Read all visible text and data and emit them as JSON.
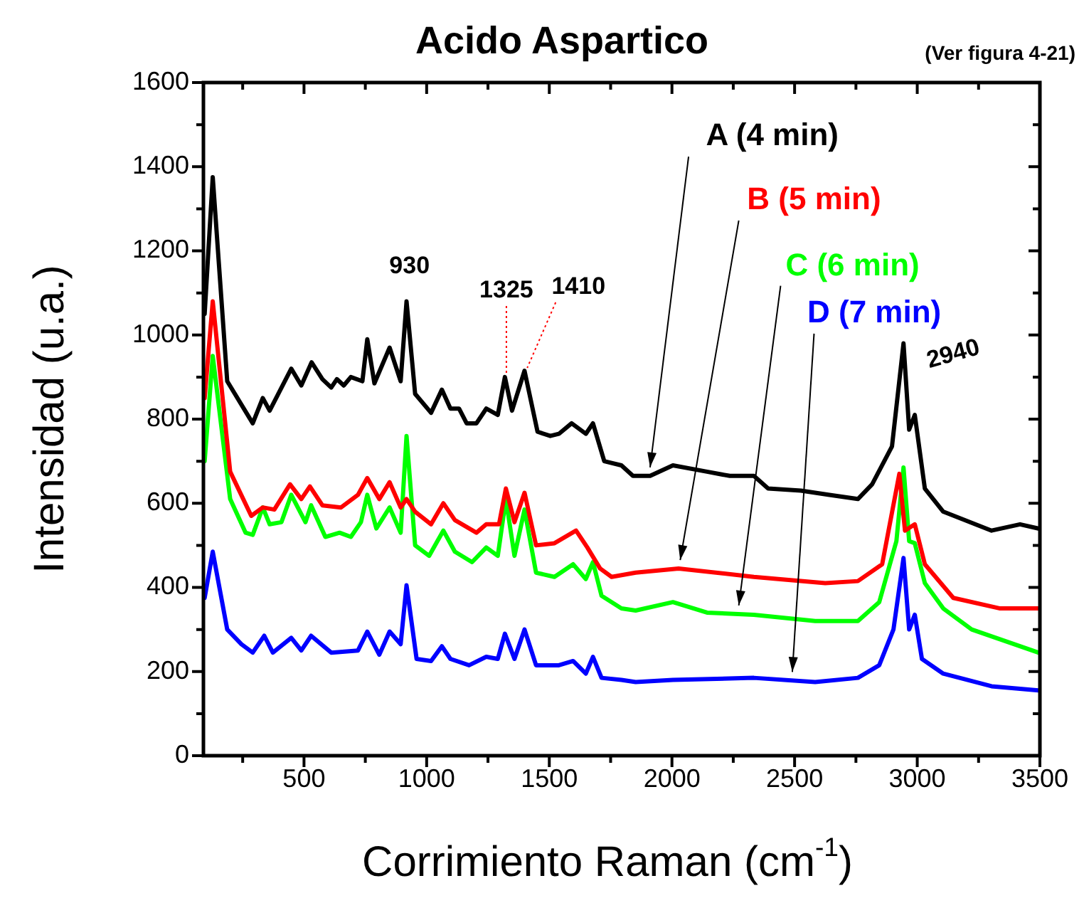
{
  "chart_data": {
    "type": "line",
    "title": "Acido Aspartico",
    "subtitle": "(Ver figura 4-21)",
    "xlabel": "Corrimiento Raman (cm$^{-1}$)",
    "ylabel": "Intensidad (u.a.)",
    "xlim": [
      90,
      3500
    ],
    "xticks": [
      {
        "value": 250,
        "label": null
      },
      500,
      {
        "value": 750,
        "label": null
      },
      1000,
      {
        "value": 1250,
        "label": null
      },
      1500,
      {
        "value": 1750,
        "label": null
      },
      2000,
      {
        "value": 2250,
        "label": null
      },
      2500,
      {
        "value": 2750,
        "label": null
      },
      3000,
      {
        "value": 3250,
        "label": null
      },
      3500
    ],
    "ylim": [
      0,
      1600
    ],
    "yticks": [
      0,
      {
        "value": 100,
        "label": null
      },
      200,
      {
        "value": 300,
        "label": null
      },
      400,
      {
        "value": 500,
        "label": null
      },
      600,
      {
        "value": 700,
        "label": null
      },
      800,
      {
        "value": 900,
        "label": null
      },
      1000,
      {
        "value": 1100,
        "label": null
      },
      1200,
      {
        "value": 1300,
        "label": null
      },
      1400,
      {
        "value": 1500,
        "label": null
      },
      1600
    ],
    "grid": false,
    "legend": "top right",
    "marker": "none",
    "line_style": "solid",
    "annotations": [
      {
        "text": "930",
        "x": 930,
        "y": 1080
      },
      {
        "text": "1325",
        "x": 1325,
        "y": 900
      },
      {
        "text": "1410",
        "x": 1410,
        "y": 915
      },
      {
        "text": "2940",
        "x": 2940,
        "y": 980
      }
    ],
    "series": [
      {
        "name": "A (4 min)",
        "color": "#000000",
        "x": [
          95,
          128,
          187,
          291,
          332,
          360,
          448,
          489,
          531,
          575,
          611,
          634,
          662,
          691,
          738,
          758,
          787,
          849,
          894,
          918,
          953,
          1018,
          1062,
          1097,
          1132,
          1163,
          1203,
          1243,
          1290,
          1319,
          1348,
          1399,
          1452,
          1504,
          1539,
          1591,
          1649,
          1678,
          1724,
          1794,
          1841,
          1911,
          2004,
          2143,
          2236,
          2334,
          2392,
          2526,
          2642,
          2758,
          2816,
          2897,
          2944,
          2967,
          2990,
          3031,
          3106,
          3303,
          3419,
          3494
        ],
        "values": [
          1050,
          1375,
          890,
          790,
          850,
          820,
          920,
          880,
          935,
          895,
          875,
          895,
          880,
          900,
          890,
          990,
          885,
          970,
          890,
          1080,
          860,
          815,
          870,
          825,
          825,
          790,
          790,
          825,
          810,
          900,
          820,
          915,
          770,
          760,
          765,
          790,
          765,
          790,
          700,
          690,
          665,
          665,
          690,
          675,
          665,
          665,
          635,
          630,
          620,
          610,
          645,
          735,
          980,
          775,
          810,
          635,
          580,
          535,
          550,
          540
        ]
      },
      {
        "name": "B (5 min)",
        "color": "#ff0000",
        "x": [
          95,
          128,
          199,
          285,
          332,
          379,
          443,
          489,
          524,
          575,
          651,
          720,
          758,
          807,
          849,
          894,
          918,
          953,
          1018,
          1068,
          1115,
          1203,
          1243,
          1295,
          1323,
          1358,
          1399,
          1446,
          1521,
          1609,
          1655,
          1707,
          1754,
          1852,
          2027,
          2334,
          2625,
          2758,
          2857,
          2927,
          2950,
          2990,
          3031,
          3147,
          3338,
          3494
        ],
        "values": [
          850,
          1080,
          675,
          570,
          590,
          585,
          645,
          610,
          640,
          595,
          590,
          620,
          660,
          610,
          650,
          590,
          610,
          580,
          550,
          600,
          560,
          530,
          550,
          550,
          635,
          555,
          625,
          500,
          505,
          535,
          495,
          445,
          425,
          435,
          445,
          425,
          410,
          415,
          455,
          670,
          535,
          550,
          455,
          375,
          350,
          350
        ]
      },
      {
        "name": "C (6 min)",
        "color": "#00ff00",
        "x": [
          95,
          128,
          199,
          262,
          291,
          332,
          360,
          408,
          448,
          506,
          529,
          587,
          645,
          691,
          732,
          758,
          795,
          849,
          894,
          918,
          953,
          1010,
          1068,
          1115,
          1185,
          1243,
          1290,
          1323,
          1358,
          1399,
          1446,
          1521,
          1597,
          1649,
          1678,
          1713,
          1794,
          1852,
          2004,
          2143,
          2334,
          2584,
          2758,
          2845,
          2915,
          2944,
          2967,
          2990,
          3031,
          3106,
          3222,
          3494
        ],
        "values": [
          700,
          950,
          610,
          530,
          525,
          590,
          550,
          555,
          620,
          555,
          595,
          520,
          530,
          520,
          555,
          620,
          540,
          590,
          530,
          760,
          500,
          475,
          535,
          485,
          460,
          495,
          475,
          610,
          475,
          585,
          435,
          425,
          455,
          420,
          460,
          380,
          350,
          345,
          365,
          340,
          335,
          320,
          320,
          365,
          510,
          685,
          510,
          505,
          410,
          350,
          300,
          245
        ]
      },
      {
        "name": "D (7 min)",
        "color": "#0000ff",
        "x": [
          95,
          128,
          187,
          245,
          291,
          338,
          373,
          448,
          489,
          529,
          611,
          720,
          758,
          807,
          849,
          894,
          918,
          959,
          1018,
          1062,
          1097,
          1173,
          1243,
          1290,
          1319,
          1358,
          1399,
          1446,
          1539,
          1597,
          1649,
          1678,
          1713,
          1794,
          1852,
          2004,
          2334,
          2584,
          2758,
          2845,
          2903,
          2944,
          2967,
          2990,
          3019,
          3106,
          3303,
          3494
        ],
        "values": [
          375,
          485,
          300,
          265,
          245,
          285,
          245,
          280,
          250,
          285,
          245,
          250,
          295,
          240,
          295,
          265,
          405,
          230,
          225,
          260,
          230,
          215,
          235,
          230,
          290,
          230,
          300,
          215,
          215,
          225,
          195,
          235,
          185,
          180,
          175,
          180,
          185,
          175,
          185,
          215,
          300,
          470,
          300,
          335,
          230,
          195,
          165,
          155
        ]
      }
    ]
  }
}
